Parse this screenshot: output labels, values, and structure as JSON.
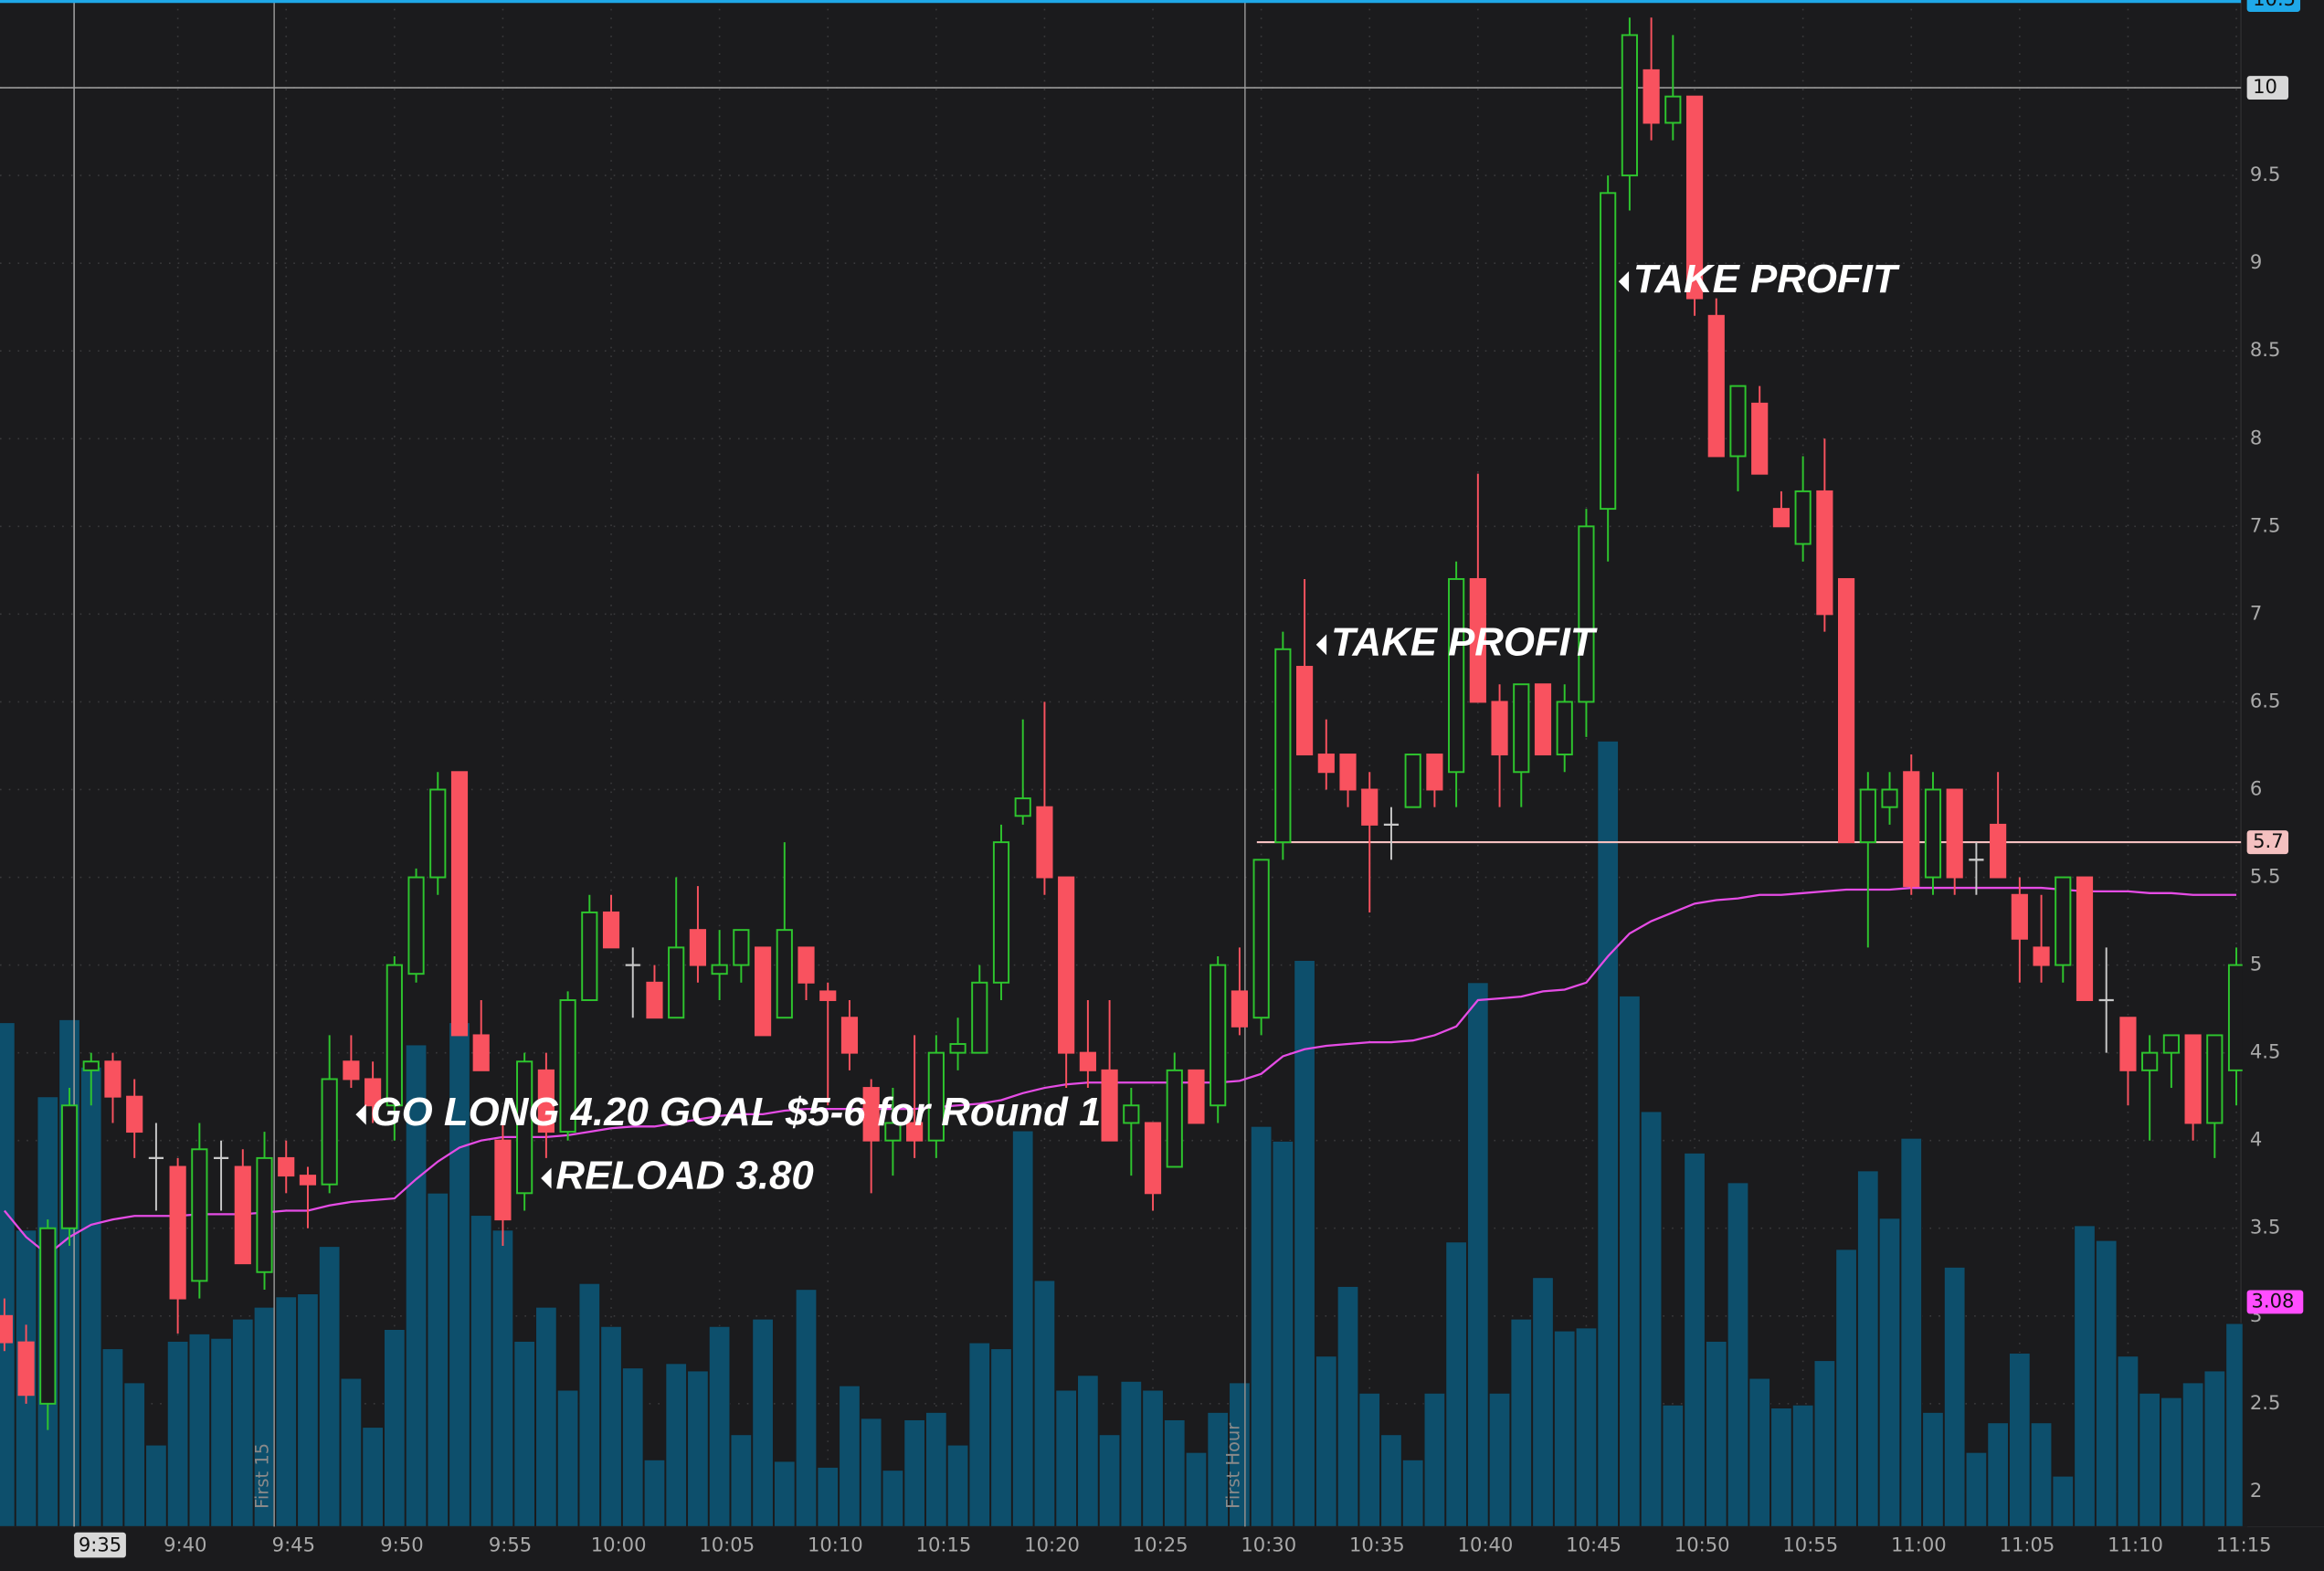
{
  "chart_data": {
    "type": "candlestick",
    "categories": [
      null,
      null,
      null,
      null,
      null,
      null,
      null,
      null,
      "9:40",
      null,
      null,
      null,
      null,
      "9:45",
      null,
      null,
      null,
      null,
      "9:50",
      null,
      null,
      null,
      null,
      "9:55",
      null,
      null,
      null,
      null,
      "10:00",
      null,
      null,
      null,
      null,
      "10:05",
      null,
      null,
      null,
      null,
      "10:10",
      null,
      null,
      null,
      null,
      "10:15",
      null,
      null,
      null,
      null,
      "10:20",
      null,
      null,
      null,
      null,
      "10:25",
      null,
      null,
      null,
      null,
      "10:30",
      null,
      null,
      null,
      null,
      "10:35",
      null,
      null,
      null,
      null,
      "10:40",
      null,
      null,
      null,
      null,
      "10:45",
      null,
      null,
      null,
      null,
      "10:50",
      null,
      null,
      null,
      null,
      "10:55",
      null,
      null,
      null,
      null,
      "11:00",
      null,
      null,
      null,
      null,
      "11:05",
      null,
      null,
      null,
      null,
      "11:10",
      null,
      null,
      null,
      null,
      "11:15"
    ],
    "ohlc": [
      [
        3.0,
        3.1,
        2.8,
        2.85
      ],
      [
        2.85,
        2.95,
        2.5,
        2.55
      ],
      [
        2.5,
        3.55,
        2.35,
        3.5
      ],
      [
        3.5,
        4.3,
        3.4,
        4.2
      ],
      [
        4.4,
        4.5,
        4.2,
        4.45
      ],
      [
        4.45,
        4.5,
        4.1,
        4.25
      ],
      [
        4.25,
        4.35,
        3.9,
        4.05
      ],
      [
        3.9,
        4.1,
        3.6,
        3.9
      ],
      [
        3.85,
        3.9,
        2.9,
        3.1
      ],
      [
        3.2,
        4.1,
        3.1,
        3.95
      ],
      [
        3.9,
        4.0,
        3.6,
        3.9
      ],
      [
        3.85,
        3.95,
        3.3,
        3.3
      ],
      [
        3.25,
        4.05,
        3.15,
        3.9
      ],
      [
        3.9,
        4.0,
        3.7,
        3.8
      ],
      [
        3.8,
        3.85,
        3.5,
        3.75
      ],
      [
        3.75,
        4.6,
        3.7,
        4.35
      ],
      [
        4.45,
        4.6,
        4.3,
        4.35
      ],
      [
        4.35,
        4.45,
        4.1,
        4.2
      ],
      [
        4.2,
        5.05,
        4.0,
        5.0
      ],
      [
        4.95,
        5.55,
        4.9,
        5.5
      ],
      [
        5.5,
        6.1,
        5.4,
        6.0
      ],
      [
        6.1,
        6.1,
        4.6,
        4.6
      ],
      [
        4.6,
        4.8,
        4.4,
        4.4
      ],
      [
        4.0,
        4.1,
        3.4,
        3.55
      ],
      [
        3.7,
        4.5,
        3.6,
        4.45
      ],
      [
        4.4,
        4.5,
        3.9,
        4.05
      ],
      [
        4.05,
        4.85,
        4.0,
        4.8
      ],
      [
        4.8,
        5.4,
        4.8,
        5.3
      ],
      [
        5.3,
        5.4,
        5.1,
        5.1
      ],
      [
        5.0,
        5.1,
        4.7,
        5.0
      ],
      [
        4.9,
        5.0,
        4.7,
        4.7
      ],
      [
        4.7,
        5.5,
        4.7,
        5.1
      ],
      [
        5.2,
        5.45,
        4.9,
        5.0
      ],
      [
        4.95,
        5.2,
        4.8,
        5.0
      ],
      [
        5.0,
        5.2,
        4.9,
        5.2
      ],
      [
        5.1,
        5.1,
        4.6,
        4.6
      ],
      [
        4.7,
        5.7,
        4.7,
        5.2
      ],
      [
        5.1,
        5.1,
        4.8,
        4.9
      ],
      [
        4.85,
        4.9,
        4.2,
        4.8
      ],
      [
        4.7,
        4.8,
        4.4,
        4.5
      ],
      [
        4.3,
        4.35,
        3.7,
        4.0
      ],
      [
        4.0,
        4.3,
        3.8,
        4.1
      ],
      [
        4.1,
        4.6,
        3.9,
        4.0
      ],
      [
        4.0,
        4.6,
        3.9,
        4.5
      ],
      [
        4.5,
        4.7,
        4.4,
        4.55
      ],
      [
        4.5,
        5.0,
        4.5,
        4.9
      ],
      [
        4.9,
        5.8,
        4.8,
        5.7
      ],
      [
        5.85,
        6.4,
        5.8,
        5.95
      ],
      [
        5.9,
        6.5,
        5.4,
        5.5
      ],
      [
        5.5,
        5.5,
        4.3,
        4.5
      ],
      [
        4.5,
        4.8,
        4.3,
        4.4
      ],
      [
        4.4,
        4.8,
        4.0,
        4.0
      ],
      [
        4.1,
        4.3,
        3.8,
        4.2
      ],
      [
        4.1,
        4.1,
        3.6,
        3.7
      ],
      [
        3.85,
        4.5,
        3.85,
        4.4
      ],
      [
        4.4,
        4.4,
        4.1,
        4.1
      ],
      [
        4.2,
        5.05,
        4.1,
        5.0
      ],
      [
        4.85,
        5.1,
        4.6,
        4.65
      ],
      [
        4.7,
        5.6,
        4.6,
        5.6
      ],
      [
        5.7,
        6.9,
        5.6,
        6.8
      ],
      [
        6.7,
        7.2,
        6.2,
        6.2
      ],
      [
        6.2,
        6.4,
        6.0,
        6.1
      ],
      [
        6.2,
        6.2,
        5.9,
        6.0
      ],
      [
        6.0,
        6.1,
        5.3,
        5.8
      ],
      [
        5.8,
        5.9,
        5.6,
        5.8
      ],
      [
        5.9,
        6.2,
        5.9,
        6.2
      ],
      [
        6.2,
        6.2,
        5.9,
        6.0
      ],
      [
        6.1,
        7.3,
        5.9,
        7.2
      ],
      [
        7.2,
        7.8,
        6.5,
        6.5
      ],
      [
        6.5,
        6.6,
        5.9,
        6.2
      ],
      [
        6.1,
        6.6,
        5.9,
        6.6
      ],
      [
        6.6,
        6.6,
        6.2,
        6.2
      ],
      [
        6.2,
        6.6,
        6.1,
        6.5
      ],
      [
        6.5,
        7.6,
        6.3,
        7.5
      ],
      [
        7.6,
        9.5,
        7.3,
        9.4
      ],
      [
        9.5,
        10.4,
        9.3,
        10.3
      ],
      [
        10.1,
        10.4,
        9.7,
        9.8
      ],
      [
        9.8,
        10.3,
        9.7,
        9.95
      ],
      [
        9.95,
        9.95,
        8.7,
        8.8
      ],
      [
        8.7,
        8.8,
        7.9,
        7.9
      ],
      [
        7.9,
        8.3,
        7.7,
        8.3
      ],
      [
        8.2,
        8.3,
        7.8,
        7.8
      ],
      [
        7.6,
        7.7,
        7.5,
        7.5
      ],
      [
        7.4,
        7.9,
        7.3,
        7.7
      ],
      [
        7.7,
        8.0,
        6.9,
        7.0
      ],
      [
        7.2,
        7.2,
        5.7,
        5.7
      ],
      [
        5.7,
        6.1,
        5.1,
        6.0
      ],
      [
        5.9,
        6.1,
        5.8,
        6.0
      ],
      [
        6.1,
        6.2,
        5.4,
        5.45
      ],
      [
        5.5,
        6.1,
        5.4,
        6.0
      ],
      [
        6.0,
        6.0,
        5.4,
        5.5
      ],
      [
        5.6,
        5.7,
        5.4,
        5.6
      ],
      [
        5.8,
        6.1,
        5.5,
        5.5
      ],
      [
        5.4,
        5.5,
        4.9,
        5.15
      ],
      [
        5.1,
        5.4,
        4.9,
        5.0
      ],
      [
        5.0,
        5.5,
        4.9,
        5.5
      ],
      [
        5.5,
        5.5,
        4.8,
        4.8
      ],
      [
        4.8,
        5.1,
        4.5,
        4.8
      ],
      [
        4.7,
        4.7,
        4.2,
        4.4
      ],
      [
        4.4,
        4.6,
        4.0,
        4.5
      ],
      [
        4.5,
        4.6,
        4.3,
        4.6
      ],
      [
        4.6,
        4.6,
        4.0,
        4.1
      ],
      [
        4.1,
        4.6,
        3.9,
        4.6
      ],
      [
        4.4,
        5.1,
        4.2,
        5.0
      ]
    ],
    "volume": [
      340,
      200,
      290,
      342,
      310,
      120,
      97,
      55,
      125,
      130,
      127,
      140,
      148,
      155,
      157,
      189,
      100,
      67,
      133,
      325,
      225,
      340,
      210,
      200,
      125,
      148,
      92,
      164,
      135,
      107,
      45,
      110,
      105,
      135,
      62,
      140,
      44,
      160,
      40,
      95,
      73,
      38,
      72,
      77,
      55,
      124,
      120,
      267,
      166,
      92,
      102,
      62,
      98,
      92,
      72,
      50,
      77,
      97,
      270,
      260,
      382,
      115,
      162,
      90,
      62,
      45,
      90,
      192,
      367,
      90,
      140,
      168,
      132,
      134,
      530,
      358,
      280,
      82,
      252,
      125,
      232,
      100,
      80,
      82,
      112,
      187,
      240,
      208,
      262,
      77,
      175,
      50,
      70,
      117,
      70,
      34,
      203,
      193,
      115,
      90,
      87,
      97,
      105,
      137
    ],
    "vwap": [
      3.6,
      3.45,
      3.35,
      3.45,
      3.52,
      3.55,
      3.57,
      3.57,
      3.57,
      3.58,
      3.58,
      3.58,
      3.59,
      3.6,
      3.6,
      3.63,
      3.65,
      3.66,
      3.67,
      3.78,
      3.88,
      3.96,
      4.0,
      4.02,
      4.02,
      4.02,
      4.03,
      4.05,
      4.07,
      4.08,
      4.08,
      4.1,
      4.12,
      4.14,
      4.15,
      4.15,
      4.17,
      4.18,
      4.18,
      4.18,
      4.18,
      4.18,
      4.18,
      4.19,
      4.2,
      4.21,
      4.23,
      4.27,
      4.3,
      4.32,
      4.33,
      4.33,
      4.33,
      4.33,
      4.33,
      4.33,
      4.33,
      4.34,
      4.38,
      4.48,
      4.52,
      4.54,
      4.55,
      4.56,
      4.56,
      4.57,
      4.6,
      4.65,
      4.8,
      4.81,
      4.82,
      4.85,
      4.86,
      4.9,
      5.05,
      5.18,
      5.25,
      5.3,
      5.35,
      5.37,
      5.38,
      5.4,
      5.4,
      5.41,
      5.42,
      5.43,
      5.43,
      5.43,
      5.44,
      5.44,
      5.44,
      5.44,
      5.44,
      5.44,
      5.44,
      5.43,
      5.42,
      5.42,
      5.42,
      5.41,
      5.41,
      5.4,
      5.4,
      5.4
    ],
    "ylim": [
      1.8,
      10.5
    ],
    "yticks": [
      2,
      2.5,
      3,
      3.5,
      4,
      4.5,
      5,
      5.5,
      6,
      6.5,
      7,
      7.5,
      8,
      8.5,
      9,
      9.5,
      10
    ],
    "vlim": [
      0,
      1030
    ],
    "grid": true,
    "up_color": "#2ec52e",
    "down_color": "#f9525f",
    "doji_color": "#c8c8c8",
    "volume_color": "#0d4f6c",
    "vwap_color": "#e54ce5",
    "crosshair": {
      "x": "9:35",
      "y": 10
    },
    "top_label": {
      "value": 10.5,
      "color": "#1fa8e8"
    },
    "hlines": [
      {
        "value": 5.7,
        "color": "#f4c0c0"
      }
    ],
    "price_labels": [
      {
        "value": 3.08,
        "color": "#ff4dff"
      }
    ],
    "session_lines": [
      "First 15",
      "First Hour"
    ],
    "annotations": [
      "TAKE PROFIT",
      "TAKE PROFIT",
      "GO LONG 4.20 GOAL $5-6 for Round 1",
      "RELOAD 3.80"
    ]
  }
}
